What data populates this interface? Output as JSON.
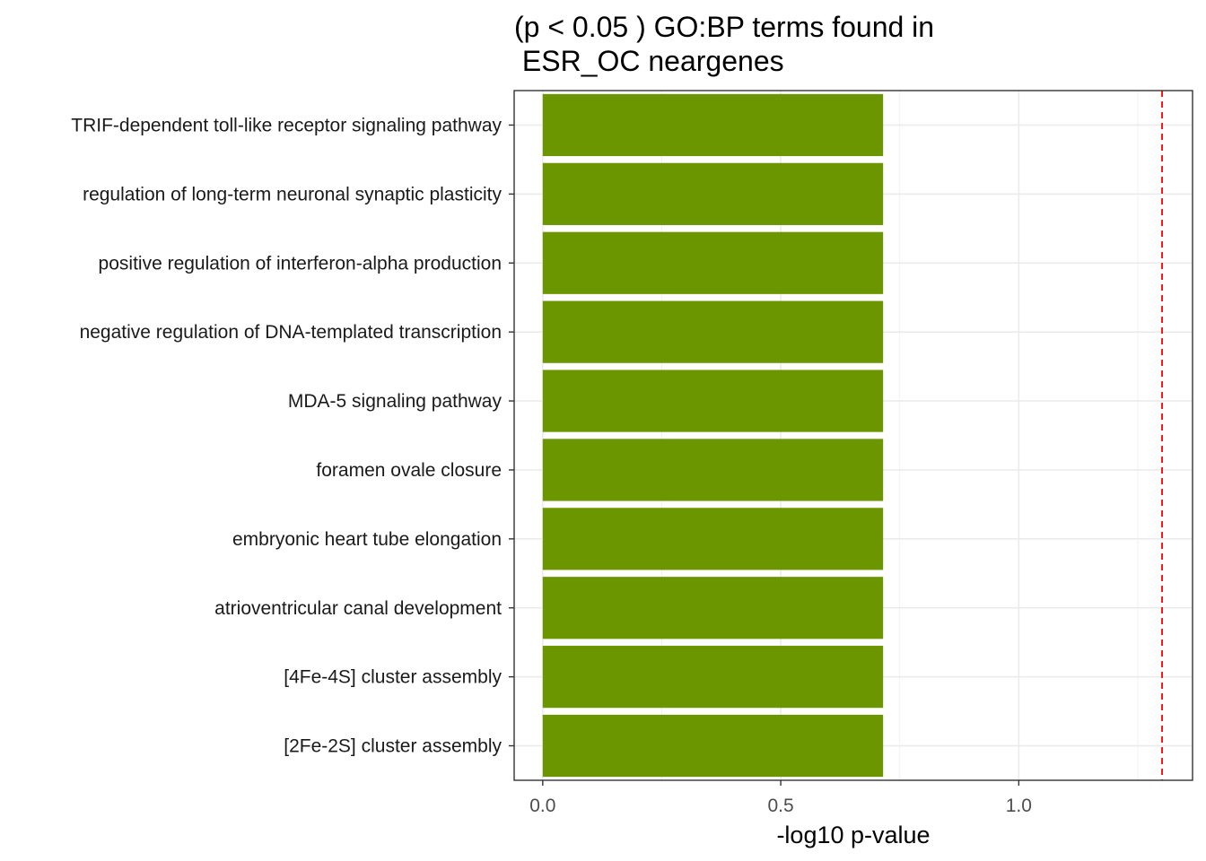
{
  "chart_data": {
    "type": "bar",
    "orientation": "horizontal",
    "title_lines": [
      "(p < 0.05 ) GO:BP terms found in",
      " ESR_OC neargenes"
    ],
    "xlabel": "-log10 p-value",
    "ylabel": "",
    "categories": [
      "TRIF-dependent toll-like receptor signaling pathway",
      "regulation of long-term neuronal synaptic plasticity",
      "positive regulation of interferon-alpha production",
      "negative regulation of DNA-templated transcription",
      "MDA-5 signaling pathway",
      "foramen ovale closure",
      "embryonic heart tube elongation",
      "atrioventricular canal development",
      "[4Fe-4S] cluster assembly",
      "[2Fe-2S] cluster assembly"
    ],
    "values": [
      0.715,
      0.715,
      0.715,
      0.715,
      0.715,
      0.715,
      0.715,
      0.715,
      0.715,
      0.715
    ],
    "xlim": [
      -0.06,
      1.365
    ],
    "xticks": [
      0.0,
      0.5,
      1.0
    ],
    "xtick_labels": [
      "0.0",
      "0.5",
      "1.0"
    ],
    "threshold_line": {
      "value": 1.301,
      "color": "#ff0000",
      "style": "dashed"
    },
    "bar_color": "#6b9600",
    "grid": true,
    "legend": "none"
  }
}
